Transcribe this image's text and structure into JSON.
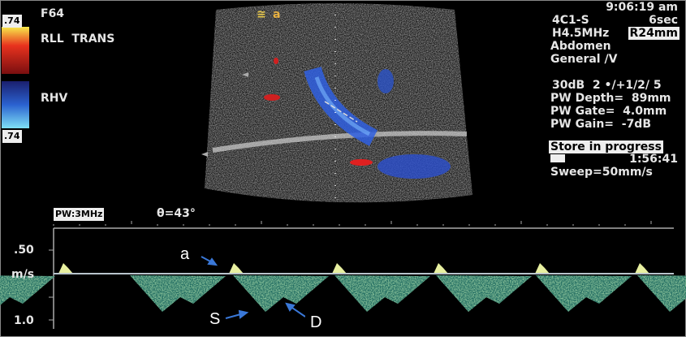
{
  "colorbar": {
    "top_value": ".74",
    "bottom_value": ".74",
    "top_colors": [
      "#f7e94a",
      "#e8321e",
      "#7a0f10"
    ],
    "bottom_colors": [
      "#1a1f6e",
      "#2b62d0",
      "#7fe0f5"
    ]
  },
  "left_labels": {
    "frame": "F64",
    "location": "RLL  TRANS",
    "vessel": "RHV"
  },
  "top_icons": {
    "focus_icon": "≅",
    "orientation_marker": "a"
  },
  "right_panel": {
    "time": "9:06:19 am",
    "probe": "4C1-S",
    "sweep_time": "6sec",
    "frequency": "H4.5MHz",
    "depth": "R24mm",
    "preset": "Abdomen",
    "mode": "General /V",
    "settings": "30dB  2 •/+1/2/ 5",
    "pw_depth": "PW Depth=  89mm",
    "pw_gate": "PW Gate=  4.0mm",
    "pw_gain": "PW Gain=  -7dB",
    "store_status": "Store in progress",
    "clip_time": "1:56:41",
    "sweep": "Sweep=50mm/s"
  },
  "spectral": {
    "pw_label": "PW:3MHz",
    "angle": "θ=43°",
    "y_labels": [
      ".50",
      "m/s",
      "1.0"
    ],
    "annotations": {
      "a": "a",
      "s": "S",
      "d": "D"
    },
    "annotation_arrow_color": "#3a78d8",
    "baseline_color": "#b8c4cc"
  }
}
